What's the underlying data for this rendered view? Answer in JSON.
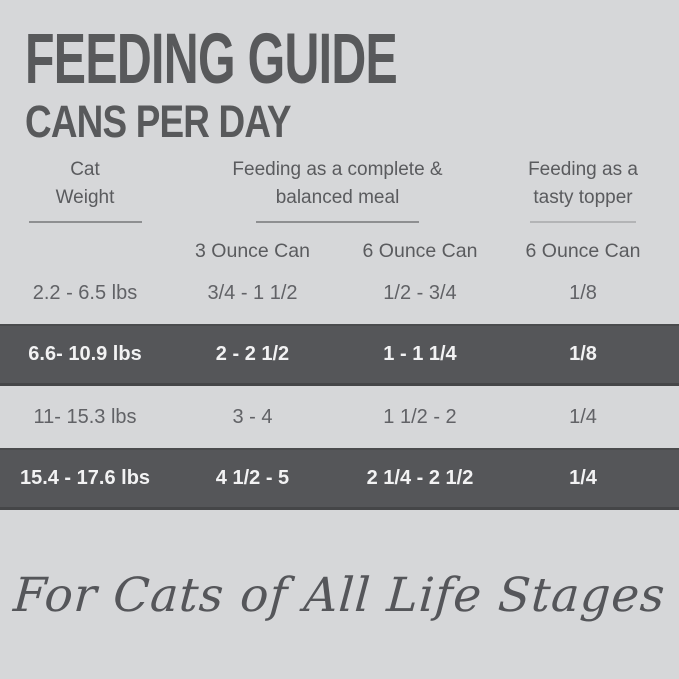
{
  "page": {
    "title": "FEEDING GUIDE",
    "subtitle": "CANS PER DAY",
    "tagline": "For Cats of All Life Stages"
  },
  "colors": {
    "background": "#d6d7d9",
    "dark_band": "#555659",
    "heading_text": "#58595b",
    "band_text": "#f2f2f3"
  },
  "table": {
    "groups": [
      {
        "line1": "Cat",
        "line2": "Weight"
      },
      {
        "line1": "Feeding as a complete &",
        "line2": "balanced meal"
      },
      {
        "line1": "Feeding as a",
        "line2": "tasty topper"
      }
    ],
    "subheaders": [
      "3 Ounce Can",
      "6 Ounce Can",
      "6 Ounce Can"
    ],
    "rows": [
      {
        "highlight": false,
        "cells": [
          "2.2 - 6.5 lbs",
          "3/4 - 1 1/2",
          "1/2 - 3/4",
          "1/8"
        ]
      },
      {
        "highlight": true,
        "cells": [
          "6.6- 10.9 lbs",
          "2 - 2 1/2",
          "1 - 1 1/4",
          "1/8"
        ]
      },
      {
        "highlight": false,
        "cells": [
          "11- 15.3 lbs",
          "3 - 4",
          "1 1/2 - 2",
          "1/4"
        ]
      },
      {
        "highlight": true,
        "cells": [
          "15.4 - 17.6 lbs",
          "4 1/2 - 5",
          "2 1/4 - 2 1/2",
          "1/4"
        ]
      }
    ]
  }
}
